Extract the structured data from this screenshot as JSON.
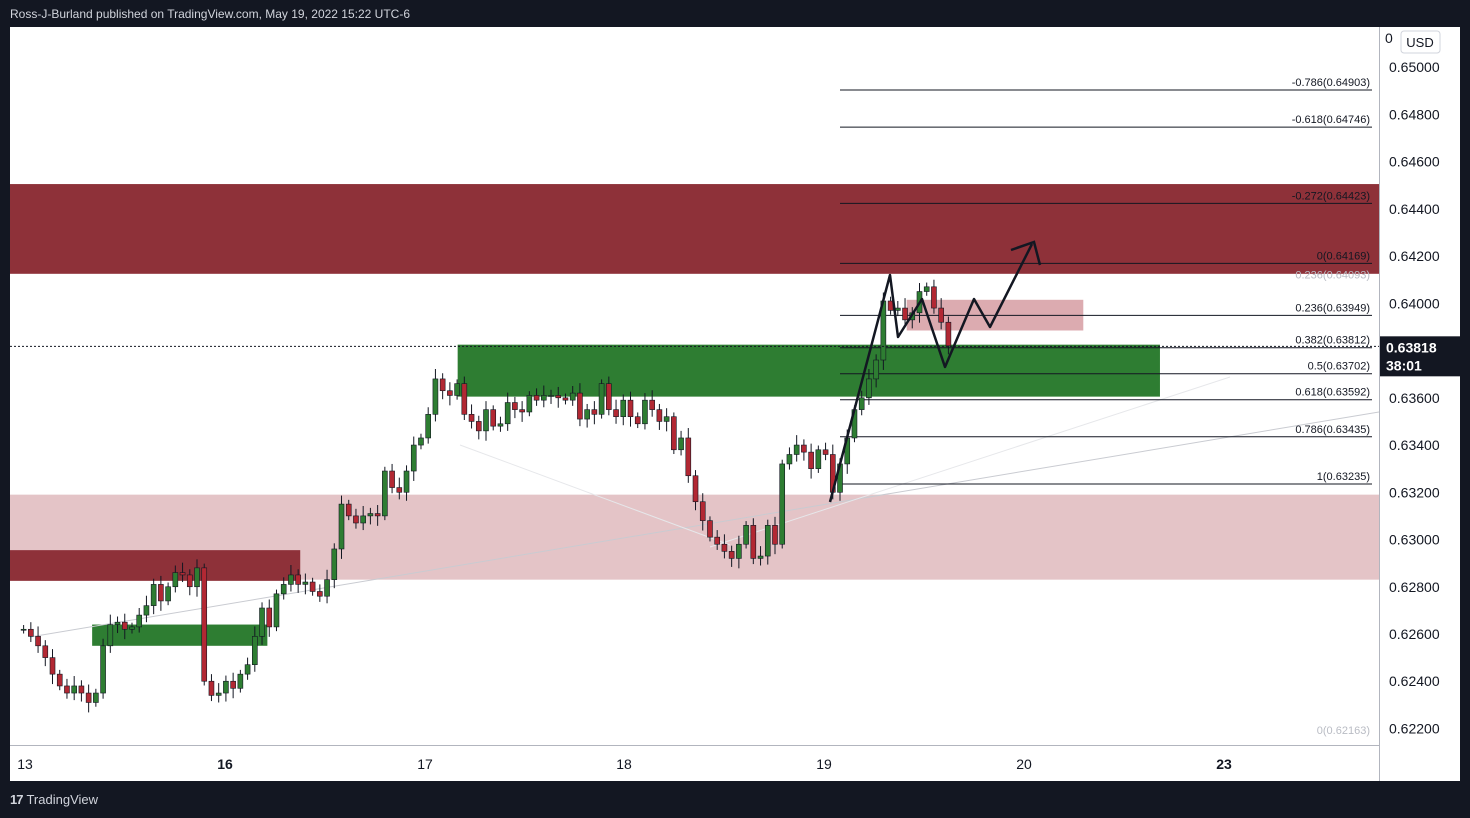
{
  "header": {
    "publisher_line": "Ross-J-Burland published on TradingView.com, May 19, 2022 15:22 UTC-6"
  },
  "footer": {
    "brand": "TradingView",
    "logo_glyph": "17"
  },
  "colors": {
    "up": "#2e7d32",
    "down": "#b22833",
    "supply_zone": "#8e3139",
    "demand_zone": "#2e7d32",
    "light_supply": "#e4c4c7",
    "pink_box": "#d69ca2"
  },
  "chart_data": {
    "type": "candlestick",
    "symbol_currency": "USD",
    "last_price": "0.63818",
    "countdown": "38:01",
    "price_axis_top_label": "0",
    "ylim": [
      0.6213,
      0.6517
    ],
    "x_ticks": [
      "13",
      "16",
      "17",
      "18",
      "19",
      "20",
      "23"
    ],
    "x_bold_ticks": [
      "16",
      "23"
    ],
    "y_ticks": [
      "0.65000",
      "0.64800",
      "0.64600",
      "0.64400",
      "0.64200",
      "0.64000",
      "0.63800",
      "0.63600",
      "0.63400",
      "0.63200",
      "0.63000",
      "0.62800",
      "0.62600",
      "0.62400",
      "0.62200"
    ],
    "fib_levels": [
      {
        "label": "-0.786(0.64903)",
        "price": 0.64903
      },
      {
        "label": "-0.618(0.64746)",
        "price": 0.64746
      },
      {
        "label": "-0.272(0.64423)",
        "price": 0.64423
      },
      {
        "label": "0(0.64169)",
        "price": 0.64169
      },
      {
        "label": "0.236(0.63949)",
        "price": 0.63949
      },
      {
        "label": "0.382(0.63812)",
        "price": 0.63812
      },
      {
        "label": "0.5(0.63702)",
        "price": 0.63702
      },
      {
        "label": "0.618(0.63592)",
        "price": 0.63592
      },
      {
        "label": "0.786(0.63435)",
        "price": 0.63435
      },
      {
        "label": "1(0.63235)",
        "price": 0.63235
      }
    ],
    "faint_labels": [
      {
        "label": "0.236(0.64093)",
        "price": 0.64093
      },
      {
        "label": "0(0.62163)",
        "price": 0.62163
      }
    ],
    "zones": [
      {
        "name": "supply-zone-upper",
        "kind": "supply",
        "x0": 0,
        "x1": 1.0,
        "top": 0.64505,
        "bottom": 0.64125
      },
      {
        "name": "supply-zone-lower-pale",
        "kind": "light",
        "x0": 0,
        "x1": 1.0,
        "top": 0.6319,
        "bottom": 0.6283
      },
      {
        "name": "supply-zone-small",
        "kind": "supply",
        "x0": 0,
        "x1": 0.212,
        "top": 0.62955,
        "bottom": 0.62825
      },
      {
        "name": "demand-zone-small",
        "kind": "demand",
        "x0": 0.06,
        "x1": 0.188,
        "top": 0.6264,
        "bottom": 0.6255
      },
      {
        "name": "demand-zone-main",
        "kind": "demand",
        "x0": 0.327,
        "x1": 0.84,
        "top": 0.63825,
        "bottom": 0.63605
      },
      {
        "name": "pink-box-consolidation",
        "kind": "pink",
        "x0": 0.655,
        "x1": 0.784,
        "top": 0.64015,
        "bottom": 0.63885
      }
    ],
    "price_path": [
      0.6262,
      0.6262,
      0.6259,
      0.6255,
      0.625,
      0.6243,
      0.6238,
      0.6235,
      0.6238,
      0.6235,
      0.6231,
      0.6235,
      0.6255,
      0.6264,
      0.6265,
      0.6262,
      0.6263,
      0.6268,
      0.6272,
      0.6281,
      0.6274,
      0.628,
      0.6286,
      0.6285,
      0.628,
      0.6288,
      0.624,
      0.6234,
      0.6235,
      0.624,
      0.6237,
      0.6243,
      0.6247,
      0.6259,
      0.6271,
      0.6263,
      0.6277,
      0.6281,
      0.6285,
      0.6281,
      0.6282,
      0.6278,
      0.6276,
      0.6283,
      0.6296,
      0.6315,
      0.631,
      0.6307,
      0.631,
      0.6311,
      0.631,
      0.6329,
      0.6322,
      0.632,
      0.6329,
      0.634,
      0.6343,
      0.6353,
      0.6368,
      0.6363,
      0.6361,
      0.6366,
      0.6353,
      0.635,
      0.6346,
      0.6355,
      0.6348,
      0.6349,
      0.6358,
      0.6355,
      0.6354,
      0.6361,
      0.6359,
      0.6361,
      0.6361,
      0.636,
      0.6359,
      0.6362,
      0.6351,
      0.6355,
      0.6353,
      0.6366,
      0.6355,
      0.6352,
      0.6359,
      0.6352,
      0.6349,
      0.6359,
      0.6355,
      0.635,
      0.6352,
      0.6338,
      0.6343,
      0.6327,
      0.6316,
      0.6308,
      0.6301,
      0.6298,
      0.6295,
      0.6292,
      0.6298,
      0.6306,
      0.6292,
      0.6293,
      0.6306,
      0.6298,
      0.6332,
      0.6336,
      0.634,
      0.6337,
      0.633,
      0.6338,
      0.6336,
      0.632,
      0.6332,
      0.6343,
      0.6355,
      0.636,
      0.6368,
      0.6376,
      0.6401,
      0.6397,
      0.6398,
      0.6393,
      0.6396,
      0.6405,
      0.6407,
      0.6398,
      0.6392,
      0.6382
    ]
  }
}
